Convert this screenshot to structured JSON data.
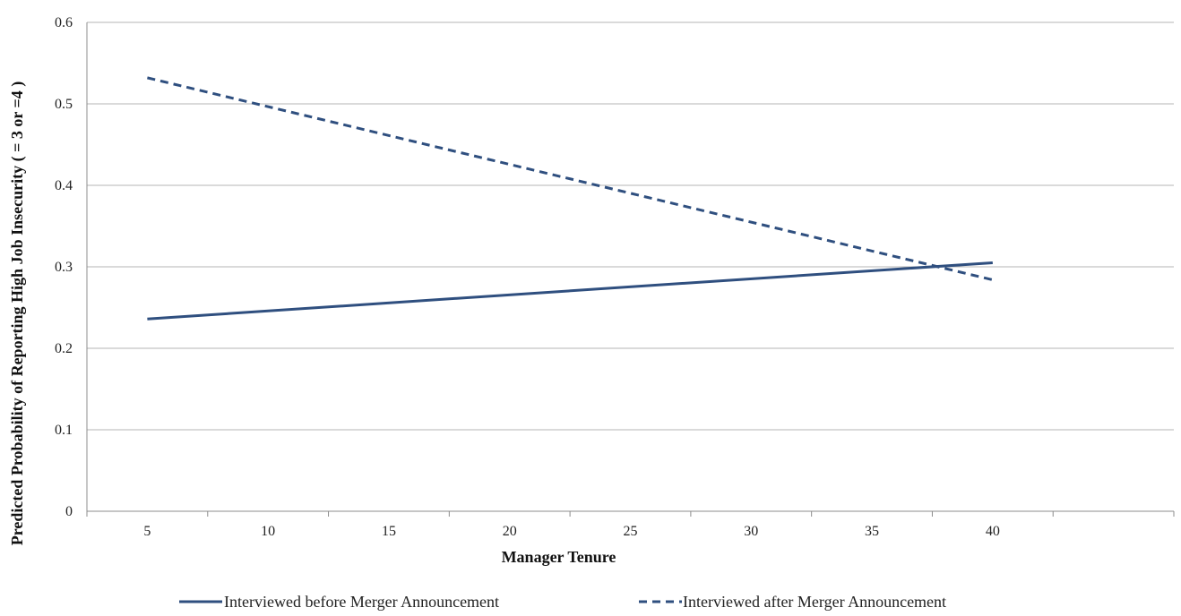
{
  "chart_data": {
    "type": "line",
    "title": "",
    "xlabel": "Manager Tenure",
    "ylabel": "Predicted Probability  of Reporting High Job Insecurity ( = 3  or =4 )",
    "x": [
      5,
      10,
      15,
      20,
      25,
      30,
      35,
      40
    ],
    "x_ticks": [
      "5",
      "10",
      "15",
      "20",
      "25",
      "30",
      "35",
      "40"
    ],
    "y_ticks": [
      "0",
      "0.1",
      "0.2",
      "0.3",
      "0.4",
      "0.5",
      "0.6"
    ],
    "ylim": [
      0,
      0.6
    ],
    "grid": true,
    "legend_position": "bottom",
    "series": [
      {
        "name": "Interviewed before Merger Announcement",
        "style": "solid",
        "color": "#2f4f7f",
        "points": [
          [
            5,
            0.236
          ],
          [
            40,
            0.305
          ]
        ]
      },
      {
        "name": "Interviewed after Merger Announcement",
        "style": "dashed",
        "color": "#2f4f7f",
        "points": [
          [
            5,
            0.532
          ],
          [
            40,
            0.284
          ]
        ]
      }
    ]
  }
}
